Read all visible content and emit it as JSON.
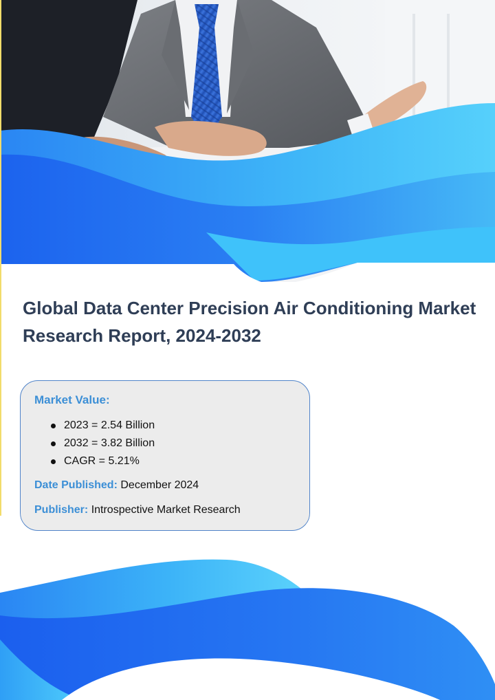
{
  "report": {
    "title": "Global Data Center Precision Air Conditioning Market Research Report, 2024-2032"
  },
  "market_value": {
    "heading": "Market Value:",
    "items": [
      "2023 = 2.54 Billion",
      "2032 = 3.82 Billion",
      "CAGR = 5.21%"
    ]
  },
  "date_published": {
    "label": "Date Published:",
    "value": "December 2024"
  },
  "publisher": {
    "label": "Publisher:",
    "value": "Introspective Market Research"
  },
  "colors": {
    "title": "#2f3e56",
    "label_blue": "#3c8fd6",
    "card_bg": "#ececec",
    "card_border": "#4f83c9",
    "wave_light": "#49c8f7",
    "wave_dark": "#1f6ff0"
  }
}
